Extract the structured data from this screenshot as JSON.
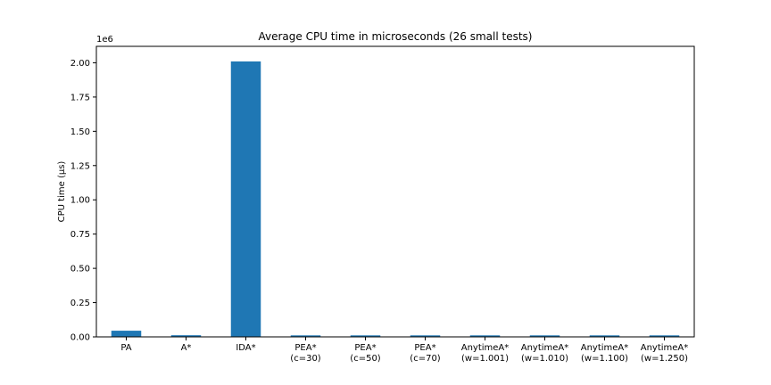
{
  "chart_data": {
    "type": "bar",
    "title": "Average CPU time in microseconds (26 small tests)",
    "xlabel": "",
    "ylabel": "CPU time (µs)",
    "y_offset_label": "1e6",
    "y_scale_factor": 1000000,
    "ylim": [
      0,
      2120000
    ],
    "yticks": [
      0,
      250000,
      500000,
      750000,
      1000000,
      1250000,
      1500000,
      1750000,
      2000000
    ],
    "ytick_labels": [
      "0.00",
      "0.25",
      "0.50",
      "0.75",
      "1.00",
      "1.25",
      "1.50",
      "1.75",
      "2.00"
    ],
    "categories": [
      [
        "PA"
      ],
      [
        "A*"
      ],
      [
        "IDA*"
      ],
      [
        "PEA*",
        "(c=30)"
      ],
      [
        "PEA*",
        "(c=50)"
      ],
      [
        "PEA*",
        "(c=70)"
      ],
      [
        "AnytimeA*",
        "(w=1.001)"
      ],
      [
        "AnytimeA*",
        "(w=1.010)"
      ],
      [
        "AnytimeA*",
        "(w=1.100)"
      ],
      [
        "AnytimeA*",
        "(w=1.250)"
      ]
    ],
    "values": [
      45000,
      12000,
      2010000,
      11000,
      11000,
      11000,
      11000,
      11000,
      11000,
      11000
    ],
    "bar_color": "#1f77b4",
    "grid": false,
    "legend": "none"
  }
}
